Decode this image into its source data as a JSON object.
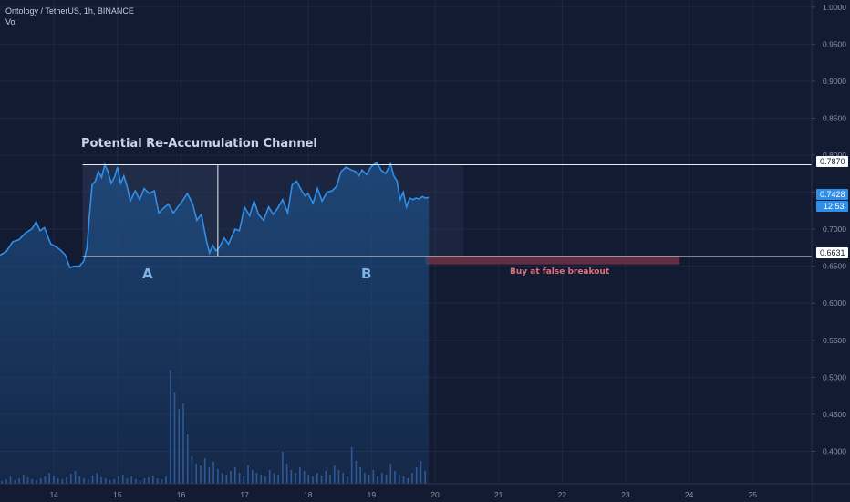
{
  "legend": {
    "symbol_line": "Ontology / TetherUS, 1h, BINANCE",
    "volume_label": "Vol"
  },
  "colors": {
    "background": "#131b33",
    "price_line": "#2f8fe8",
    "area_fill": "#1d4f86",
    "volume": "#3c6fb8",
    "channel_line": "#e8ecf5",
    "zone_fill": "#2d3a5a",
    "buy_zone": "#6e3044",
    "buy_text": "#e0707a",
    "axis_text": "#8d93a6",
    "current_badge": "#2f8fe8"
  },
  "chart_data": {
    "type": "line",
    "title": "",
    "x_ticks": [
      "14",
      "15",
      "16",
      "17",
      "18",
      "19",
      "20",
      "21",
      "22",
      "23",
      "24",
      "25"
    ],
    "y_ticks": [
      "1.0000",
      "0.9500",
      "0.9000",
      "0.8500",
      "0.8000",
      "0.7500",
      "0.7000",
      "0.6500",
      "0.6000",
      "0.5500",
      "0.5000",
      "0.4500",
      "0.4000"
    ],
    "ylim": [
      0.3562,
      1.0096
    ],
    "xlim": [
      13.15,
      25.93
    ],
    "price_series": {
      "x": [
        13.15,
        13.25,
        13.35,
        13.45,
        13.55,
        13.65,
        13.72,
        13.78,
        13.85,
        13.95,
        14.02,
        14.1,
        14.18,
        14.25,
        14.32,
        14.4,
        14.47,
        14.52,
        14.56,
        14.6,
        14.65,
        14.7,
        14.75,
        14.8,
        14.85,
        14.9,
        14.95,
        15.0,
        15.05,
        15.1,
        15.15,
        15.2,
        15.28,
        15.35,
        15.42,
        15.5,
        15.58,
        15.65,
        15.72,
        15.8,
        15.88,
        15.95,
        16.02,
        16.1,
        16.18,
        16.25,
        16.32,
        16.4,
        16.45,
        16.5,
        16.55,
        16.6,
        16.68,
        16.75,
        16.85,
        16.92,
        17.0,
        17.08,
        17.15,
        17.22,
        17.3,
        17.38,
        17.45,
        17.52,
        17.6,
        17.68,
        17.75,
        17.82,
        17.9,
        17.95,
        18.0,
        18.08,
        18.15,
        18.22,
        18.3,
        18.38,
        18.45,
        18.52,
        18.6,
        18.68,
        18.75,
        18.8,
        18.85,
        18.92,
        19.0,
        19.08,
        19.15,
        19.22,
        19.3,
        19.35,
        19.4,
        19.45,
        19.5,
        19.55,
        19.6,
        19.65,
        19.7,
        19.75,
        19.8,
        19.85,
        19.9
      ],
      "y": [
        0.665,
        0.67,
        0.683,
        0.686,
        0.695,
        0.7,
        0.71,
        0.698,
        0.702,
        0.68,
        0.677,
        0.672,
        0.665,
        0.648,
        0.65,
        0.65,
        0.657,
        0.675,
        0.72,
        0.76,
        0.765,
        0.778,
        0.77,
        0.787,
        0.778,
        0.762,
        0.77,
        0.784,
        0.762,
        0.772,
        0.758,
        0.738,
        0.752,
        0.74,
        0.755,
        0.748,
        0.752,
        0.722,
        0.728,
        0.734,
        0.722,
        0.73,
        0.738,
        0.748,
        0.735,
        0.712,
        0.72,
        0.685,
        0.668,
        0.678,
        0.671,
        0.675,
        0.688,
        0.68,
        0.7,
        0.698,
        0.73,
        0.718,
        0.738,
        0.72,
        0.712,
        0.73,
        0.72,
        0.728,
        0.74,
        0.722,
        0.76,
        0.765,
        0.752,
        0.745,
        0.748,
        0.735,
        0.755,
        0.738,
        0.75,
        0.752,
        0.758,
        0.778,
        0.784,
        0.78,
        0.778,
        0.772,
        0.78,
        0.774,
        0.785,
        0.79,
        0.78,
        0.775,
        0.788,
        0.772,
        0.765,
        0.74,
        0.75,
        0.73,
        0.742,
        0.74,
        0.742,
        0.741,
        0.744,
        0.742,
        0.743
      ],
      "area_end_x": 19.9
    },
    "volume_series": {
      "x_start": 13.18,
      "x_step": 0.068,
      "heights": [
        3,
        5,
        8,
        4,
        6,
        10,
        7,
        5,
        4,
        6,
        8,
        12,
        9,
        6,
        5,
        7,
        11,
        14,
        8,
        6,
        5,
        9,
        12,
        7,
        6,
        4,
        5,
        8,
        10,
        6,
        8,
        5,
        4,
        6,
        7,
        9,
        6,
        5,
        8,
        125,
        100,
        82,
        88,
        54,
        30,
        22,
        20,
        28,
        18,
        24,
        16,
        12,
        10,
        14,
        18,
        12,
        9,
        20,
        15,
        12,
        10,
        8,
        15,
        12,
        10,
        35,
        22,
        15,
        12,
        18,
        14,
        10,
        8,
        12,
        9,
        14,
        10,
        20,
        15,
        12,
        8,
        40,
        25,
        18,
        12,
        10,
        15,
        8,
        12,
        10,
        22,
        14,
        10,
        8,
        6,
        12,
        18,
        25,
        14,
        10,
        20,
        12,
        9,
        15,
        22,
        12,
        8,
        10,
        14,
        10,
        6,
        8,
        20,
        12,
        16,
        10,
        8,
        14,
        10,
        7,
        9,
        55,
        20,
        15,
        10,
        8,
        12,
        9,
        7,
        6,
        10,
        8,
        12,
        15,
        10,
        6,
        8,
        9,
        12,
        7,
        20,
        30,
        18,
        12,
        10,
        8,
        15,
        6,
        10,
        8,
        25,
        12,
        10,
        20,
        15,
        9,
        12,
        8,
        6
      ]
    },
    "annotations": {
      "channel_title": "Potential Re-Accumulation Channel",
      "label_a": "A",
      "label_b": "B",
      "buy_label": "Buy at false breakout",
      "resistance_value": 0.787,
      "support_value": 0.6631,
      "channel_start_x": 14.45,
      "channel_divider_x": 16.58,
      "zone_end_x": 20.45,
      "buy_zone_start_x": 19.85,
      "buy_zone_end_x": 23.85
    },
    "price_badges": {
      "resistance": "0.7870",
      "support": "0.6631",
      "current": "0.7428",
      "countdown": "12:53"
    }
  }
}
